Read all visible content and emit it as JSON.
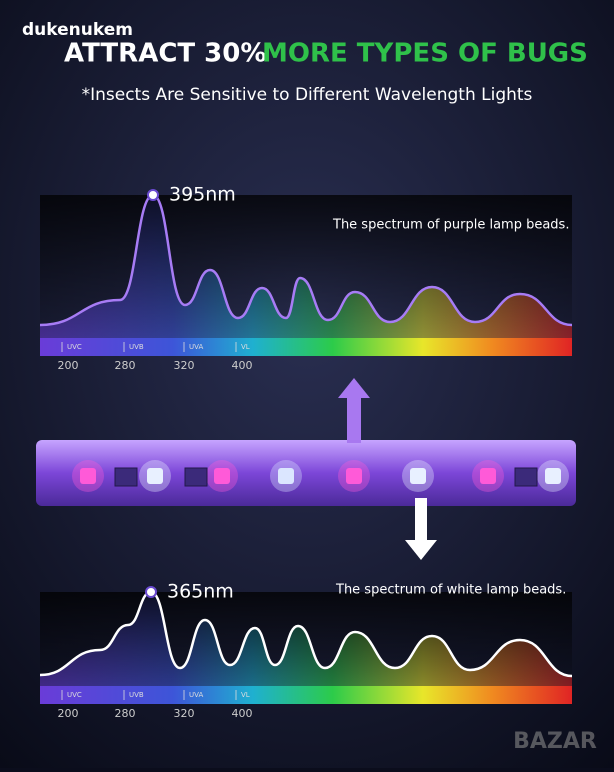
{
  "header": {
    "user": "dukenukem",
    "title_white": "ATTRACT 30%",
    "title_green": "MORE TYPES OF BUGS",
    "subtitle": "*Insects Are Sensitive to Different Wavelength Lights"
  },
  "spectra": [
    {
      "peak_label": "395nm",
      "caption": "The spectrum of purple lamp beads.",
      "bands": [
        "UVC",
        "UVB",
        "UVA",
        "VL"
      ],
      "scale": [
        200,
        280,
        320,
        400
      ]
    },
    {
      "peak_label": "365nm",
      "caption": "The spectrum of white lamp beads.",
      "bands": [
        "UVC",
        "UVB",
        "UVA",
        "VL"
      ],
      "scale": [
        200,
        280,
        320,
        400
      ]
    }
  ],
  "watermark": "BAZAR"
}
